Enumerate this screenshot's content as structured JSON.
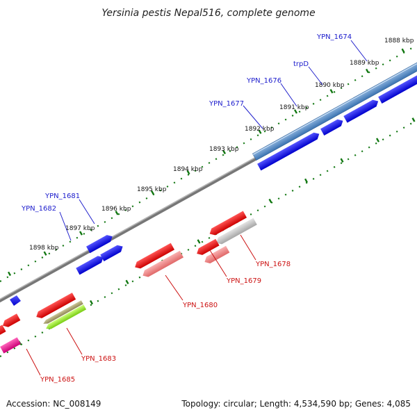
{
  "title": "Yersinia pestis Nepal516, complete genome",
  "footer": {
    "accession": "Accession: NC_008149",
    "summary": "Topology: circular; Length: 4,534,590 bp; Genes: 4,085"
  },
  "kbp_labels": [
    "1888 kbp",
    "1889 kbp",
    "1890 kbp",
    "1891 kbp",
    "1892 kbp",
    "1893 kbp",
    "1894 kbp",
    "1895 kbp",
    "1896 kbp",
    "1897 kbp",
    "1898 kbp"
  ],
  "gene_labels": {
    "forward": [
      "YPN_1674",
      "trpD",
      "YPN_1676",
      "YPN_1677",
      "YPN_1681",
      "YPN_1682"
    ],
    "reverse": [
      "YPN_1678",
      "YPN_1679",
      "YPN_1680",
      "YPN_1683",
      "YPN_1685"
    ]
  },
  "colors": {
    "forward": "#0000ee",
    "forward_light": "#4a86c8",
    "reverse": "#ee0000",
    "reverse_light": "#f08080",
    "reverse_gray": "#b8b8b8",
    "reverse_olive": "#a8a070",
    "reverse_lime": "#99ee33",
    "reverse_pink": "#ee1188",
    "backbone": "#888888",
    "ticks": "#117711"
  }
}
